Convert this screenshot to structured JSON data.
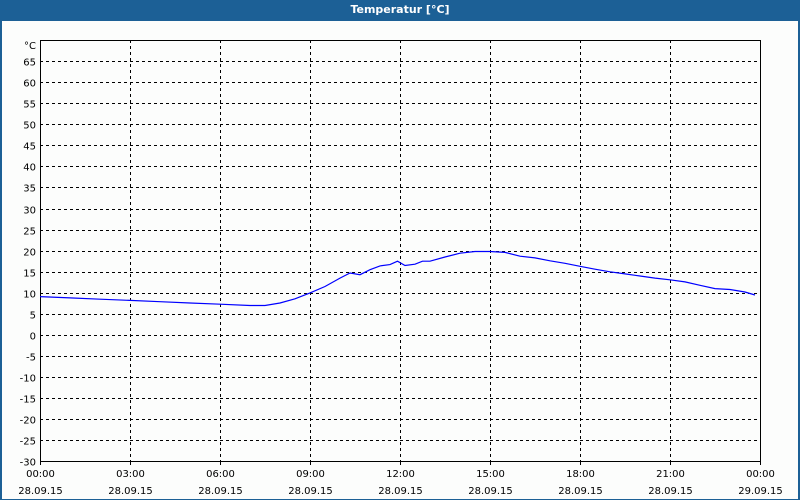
{
  "window": {
    "title": "Temperatur [°C]"
  },
  "chart_data": {
    "type": "line",
    "title": "Temperatur [°C]",
    "ylabel": "°C",
    "xlabel": "",
    "ylim": [
      -30,
      65
    ],
    "yticks": [
      65,
      60,
      55,
      50,
      45,
      40,
      35,
      30,
      25,
      20,
      15,
      10,
      5,
      0,
      -5,
      -10,
      -15,
      -20,
      -25,
      -30
    ],
    "xlim_hours": [
      0,
      24
    ],
    "xticks": [
      {
        "time": "00:00",
        "date": "28.09.15"
      },
      {
        "time": "03:00",
        "date": "28.09.15"
      },
      {
        "time": "06:00",
        "date": "28.09.15"
      },
      {
        "time": "09:00",
        "date": "28.09.15"
      },
      {
        "time": "12:00",
        "date": "28.09.15"
      },
      {
        "time": "15:00",
        "date": "28.09.15"
      },
      {
        "time": "18:00",
        "date": "28.09.15"
      },
      {
        "time": "21:00",
        "date": "28.09.15"
      },
      {
        "time": "00:00",
        "date": "29.09.15"
      }
    ],
    "grid": true,
    "series": [
      {
        "color": "#0000ff",
        "x": [
          "00:00",
          "01:00",
          "02:00",
          "03:00",
          "04:00",
          "05:00",
          "06:00",
          "07:00",
          "07:30",
          "08:00",
          "08:30",
          "09:00",
          "09:30",
          "10:00",
          "10:20",
          "10:40",
          "11:00",
          "11:20",
          "11:40",
          "11:55",
          "12:10",
          "12:30",
          "12:45",
          "13:00",
          "13:30",
          "14:00",
          "14:30",
          "15:00",
          "15:30",
          "16:00",
          "16:30",
          "17:00",
          "17:30",
          "18:00",
          "18:30",
          "19:00",
          "19:30",
          "20:00",
          "20:30",
          "21:00",
          "21:30",
          "22:00",
          "22:30",
          "23:00",
          "23:30",
          "23:50"
        ],
        "values": [
          9.1,
          8.8,
          8.5,
          8.2,
          7.9,
          7.6,
          7.3,
          7.0,
          7.0,
          7.6,
          8.6,
          10.0,
          11.5,
          13.5,
          14.7,
          14.3,
          15.5,
          16.4,
          16.7,
          17.5,
          16.5,
          16.8,
          17.5,
          17.5,
          18.5,
          19.4,
          19.8,
          19.8,
          19.6,
          18.7,
          18.3,
          17.6,
          17.0,
          16.3,
          15.6,
          15.0,
          14.5,
          14.0,
          13.5,
          13.1,
          12.6,
          11.8,
          11.0,
          10.8,
          10.2,
          9.5
        ]
      }
    ]
  }
}
